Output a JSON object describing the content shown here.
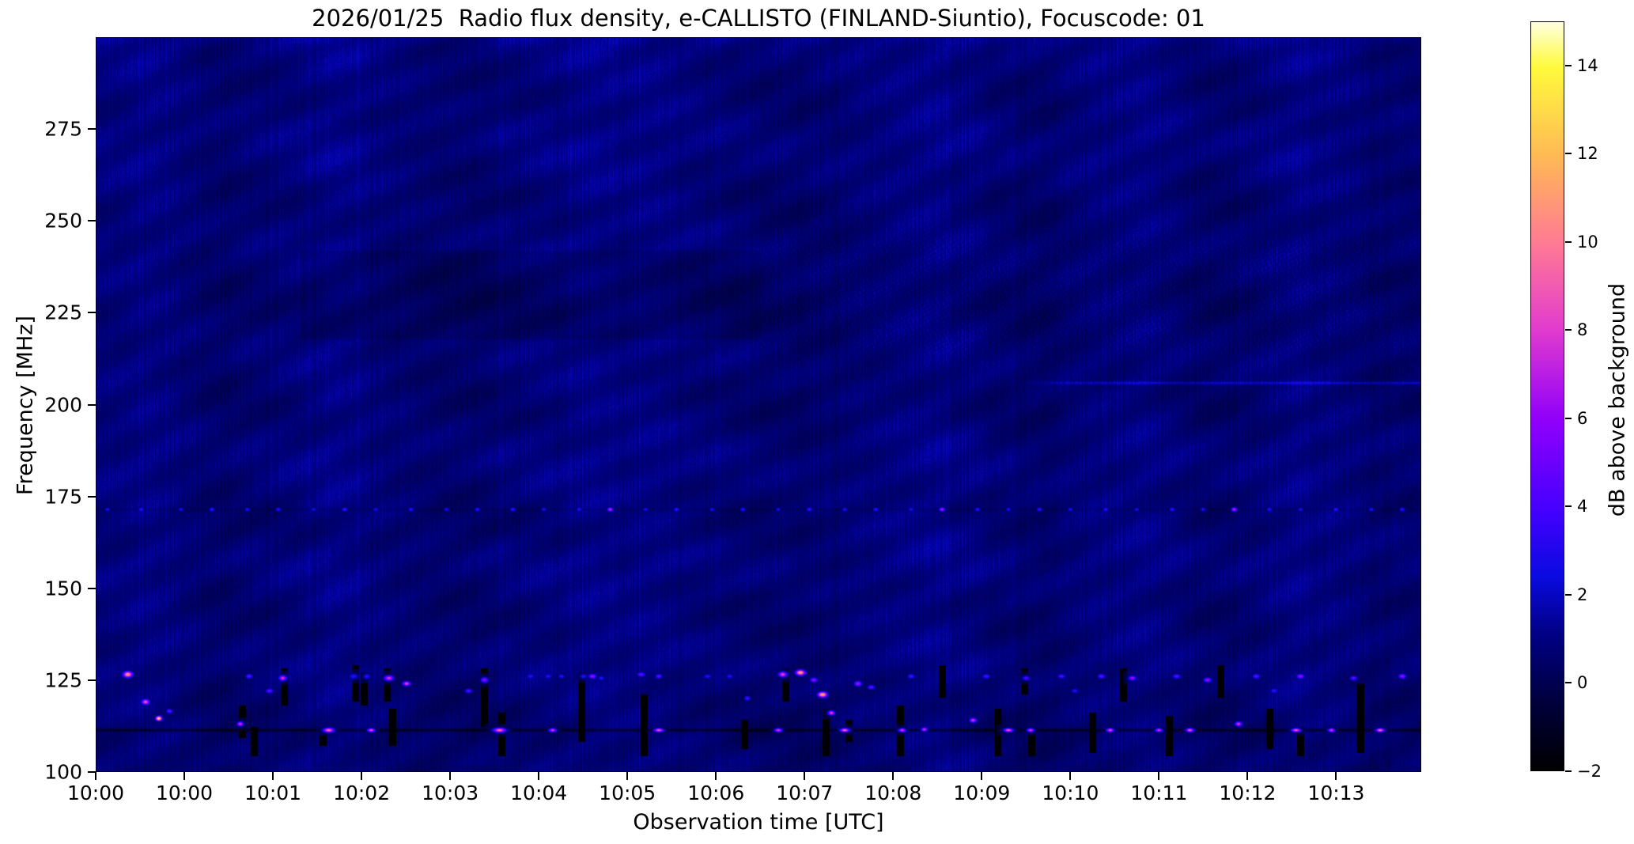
{
  "chart_data": {
    "type": "heatmap",
    "subtype": "radio-spectrogram",
    "title": "2026/01/25  Radio flux density, e-CALLISTO (FINLAND-Siuntio), Focuscode: 01",
    "xlabel": "Observation time [UTC]",
    "ylabel": "Frequency [MHz]",
    "x_range_minutes": [
      0,
      14.96
    ],
    "y_range_mhz": [
      100,
      300
    ],
    "grid": false,
    "x_ticks": [
      {
        "t": 0,
        "label": "10:00"
      },
      {
        "t": 1,
        "label": "10:00"
      },
      {
        "t": 2,
        "label": "10:01"
      },
      {
        "t": 3,
        "label": "10:02"
      },
      {
        "t": 4,
        "label": "10:03"
      },
      {
        "t": 5,
        "label": "10:04"
      },
      {
        "t": 6,
        "label": "10:05"
      },
      {
        "t": 7,
        "label": "10:06"
      },
      {
        "t": 8,
        "label": "10:07"
      },
      {
        "t": 9,
        "label": "10:08"
      },
      {
        "t": 10,
        "label": "10:09"
      },
      {
        "t": 11,
        "label": "10:10"
      },
      {
        "t": 12,
        "label": "10:11"
      },
      {
        "t": 13,
        "label": "10:12"
      },
      {
        "t": 14,
        "label": "10:13"
      }
    ],
    "y_ticks": [
      {
        "f": 275,
        "label": "275"
      },
      {
        "f": 250,
        "label": "250"
      },
      {
        "f": 225,
        "label": "225"
      },
      {
        "f": 200,
        "label": "200"
      },
      {
        "f": 175,
        "label": "175"
      },
      {
        "f": 150,
        "label": "150"
      },
      {
        "f": 125,
        "label": "125"
      },
      {
        "f": 100,
        "label": "100"
      }
    ],
    "colorbar": {
      "label": "dB above background",
      "range": [
        -2,
        15
      ],
      "ticks": [
        {
          "v": 14,
          "label": "14"
        },
        {
          "v": 12,
          "label": "12"
        },
        {
          "v": 10,
          "label": "10"
        },
        {
          "v": 8,
          "label": "8"
        },
        {
          "v": 6,
          "label": "6"
        },
        {
          "v": 4,
          "label": "4"
        },
        {
          "v": 2,
          "label": "2"
        },
        {
          "v": 0,
          "label": "0"
        },
        {
          "v": -2,
          "label": "−2"
        }
      ],
      "colormap_name": "gnuplot2-like (black-blue-violet-magenta-orange-yellow-white)",
      "stops": [
        [
          0.0,
          0,
          0,
          0
        ],
        [
          0.09,
          0,
          0,
          60
        ],
        [
          0.18,
          0,
          0,
          130
        ],
        [
          0.26,
          10,
          10,
          225
        ],
        [
          0.35,
          70,
          0,
          255
        ],
        [
          0.47,
          145,
          0,
          250
        ],
        [
          0.59,
          225,
          60,
          205
        ],
        [
          0.7,
          255,
          120,
          150
        ],
        [
          0.82,
          255,
          185,
          85
        ],
        [
          0.94,
          255,
          250,
          60
        ],
        [
          1.0,
          255,
          255,
          225
        ]
      ]
    },
    "background": {
      "mean_db": 0.8,
      "noise_db": 0.6,
      "description": "dark navy quiet background with fine vertical striations, diagonal interference waves, darker 218-242 MHz band before 10:07.5 and checkered moire texture after"
    },
    "rfi_lines": [
      {
        "f": 111.3,
        "db": -0.8,
        "t0": 0,
        "t1": 14.96,
        "note": "dark absorption line with bright bursts"
      },
      {
        "f": 171.5,
        "db": 0.2,
        "t0": 0,
        "t1": 14.96,
        "note": "dotted carrier line, periodic blue/magenta dots"
      },
      {
        "f": 206.0,
        "db": 2.2,
        "t0": 10.3,
        "t1": 14.96,
        "note": "faint bright carrier appearing near 10:10"
      }
    ],
    "line_dots_172mhz": [
      [
        0.12,
        3.2
      ],
      [
        0.5,
        3.8
      ],
      [
        0.95,
        3.0
      ],
      [
        1.3,
        4.0
      ],
      [
        1.7,
        3.2
      ],
      [
        2.05,
        3.6
      ],
      [
        2.45,
        3.0
      ],
      [
        2.8,
        4.2
      ],
      [
        3.15,
        3.2
      ],
      [
        3.55,
        3.8
      ],
      [
        3.95,
        3.0
      ],
      [
        4.3,
        3.6
      ],
      [
        4.7,
        4.0
      ],
      [
        5.05,
        3.2
      ],
      [
        5.45,
        3.6
      ],
      [
        5.8,
        7.5
      ],
      [
        6.2,
        3.2
      ],
      [
        6.55,
        4.0
      ],
      [
        6.95,
        3.2
      ],
      [
        7.3,
        3.6
      ],
      [
        7.7,
        3.0
      ],
      [
        8.05,
        4.2
      ],
      [
        8.45,
        3.4
      ],
      [
        8.8,
        3.8
      ],
      [
        9.2,
        3.2
      ],
      [
        9.55,
        7.0
      ],
      [
        9.95,
        3.6
      ],
      [
        10.3,
        3.2
      ],
      [
        10.65,
        4.0
      ],
      [
        11.0,
        3.4
      ],
      [
        11.4,
        3.8
      ],
      [
        11.75,
        3.2
      ],
      [
        12.15,
        4.0
      ],
      [
        12.5,
        3.4
      ],
      [
        12.85,
        7.5
      ],
      [
        13.25,
        3.6
      ],
      [
        13.6,
        3.2
      ],
      [
        14.0,
        4.0
      ],
      [
        14.4,
        3.4
      ],
      [
        14.75,
        3.8
      ]
    ],
    "bursts_format": "[t_min, f_MHz, peak_dB, width_px, height_px]",
    "bursts": [
      [
        0.35,
        126.5,
        11,
        12,
        8
      ],
      [
        0.55,
        119,
        9,
        10,
        7
      ],
      [
        0.7,
        114.5,
        13,
        8,
        6
      ],
      [
        0.82,
        116.5,
        5,
        8,
        6
      ],
      [
        1.62,
        113,
        8,
        8,
        6
      ],
      [
        1.72,
        126,
        5,
        9,
        6
      ],
      [
        1.95,
        122,
        5,
        10,
        6
      ],
      [
        2.1,
        125.5,
        8,
        10,
        7
      ],
      [
        2.62,
        111.3,
        9.5,
        14,
        6
      ],
      [
        2.9,
        126,
        3.5,
        12,
        7
      ],
      [
        3.05,
        126,
        3.5,
        10,
        7
      ],
      [
        3.1,
        111.3,
        8.5,
        10,
        5
      ],
      [
        3.3,
        125.5,
        8,
        12,
        7
      ],
      [
        3.5,
        124,
        8.5,
        10,
        6
      ],
      [
        4.2,
        122,
        4.5,
        10,
        6
      ],
      [
        4.38,
        125,
        6,
        10,
        7
      ],
      [
        4.55,
        111.3,
        9.5,
        16,
        6
      ],
      [
        4.9,
        126,
        3.5,
        10,
        6
      ],
      [
        5.1,
        126,
        3.5,
        10,
        6
      ],
      [
        5.25,
        126,
        3.5,
        9,
        6
      ],
      [
        5.15,
        111.3,
        8,
        10,
        5
      ],
      [
        5.5,
        126,
        3.5,
        10,
        6
      ],
      [
        5.6,
        126,
        6.5,
        10,
        6
      ],
      [
        5.7,
        125.5,
        3.5,
        9,
        6
      ],
      [
        6.15,
        126.5,
        5,
        10,
        6
      ],
      [
        6.35,
        126,
        5,
        9,
        6
      ],
      [
        6.35,
        111.3,
        9,
        12,
        5
      ],
      [
        6.9,
        126,
        3.5,
        10,
        6
      ],
      [
        7.15,
        126,
        3.5,
        9,
        6
      ],
      [
        7.35,
        120,
        4.5,
        8,
        6
      ],
      [
        7.7,
        111.3,
        8,
        10,
        5
      ],
      [
        7.75,
        126.5,
        8.5,
        11,
        7
      ],
      [
        7.95,
        127,
        11.5,
        12,
        7
      ],
      [
        8.1,
        125,
        6.5,
        9,
        6
      ],
      [
        8.2,
        121,
        12,
        12,
        7
      ],
      [
        8.3,
        116,
        8.5,
        9,
        6
      ],
      [
        8.45,
        111.3,
        9.5,
        12,
        5
      ],
      [
        8.6,
        124,
        6.5,
        10,
        7
      ],
      [
        8.75,
        123,
        5,
        10,
        6
      ],
      [
        9.1,
        111.3,
        8,
        10,
        5
      ],
      [
        9.35,
        111.5,
        8,
        8,
        5
      ],
      [
        9.2,
        126,
        4.5,
        9,
        6
      ],
      [
        9.9,
        114,
        8,
        9,
        6
      ],
      [
        10.05,
        126,
        4.5,
        10,
        6
      ],
      [
        10.3,
        111.3,
        9,
        12,
        5
      ],
      [
        10.55,
        111.3,
        8,
        9,
        5
      ],
      [
        10.5,
        125.5,
        4.5,
        10,
        6
      ],
      [
        10.9,
        126,
        4.5,
        10,
        6
      ],
      [
        11.05,
        122,
        3.5,
        9,
        6
      ],
      [
        11.35,
        126,
        5,
        10,
        6
      ],
      [
        11.45,
        111.3,
        8.5,
        10,
        5
      ],
      [
        11.7,
        125.5,
        6.5,
        10,
        6
      ],
      [
        12.0,
        111.3,
        8,
        9,
        5
      ],
      [
        12.2,
        126,
        5,
        10,
        6
      ],
      [
        12.35,
        111.3,
        9,
        10,
        5
      ],
      [
        12.55,
        125,
        6.5,
        10,
        6
      ],
      [
        12.9,
        113,
        8,
        9,
        6
      ],
      [
        13.1,
        126,
        5,
        10,
        6
      ],
      [
        13.3,
        122,
        4,
        9,
        6
      ],
      [
        13.55,
        111.3,
        9,
        12,
        5
      ],
      [
        13.6,
        126,
        6.5,
        10,
        6
      ],
      [
        13.95,
        111.3,
        8,
        9,
        5
      ],
      [
        14.2,
        125.5,
        5,
        10,
        6
      ],
      [
        14.5,
        111.3,
        9.5,
        11,
        5
      ],
      [
        14.75,
        126,
        6.5,
        10,
        6
      ]
    ],
    "dropouts_format": "[t_min, f_low_MHz, f_high_MHz] black data-gap bars",
    "dropouts": [
      [
        1.64,
        109,
        118
      ],
      [
        1.78,
        104,
        112
      ],
      [
        2.12,
        118,
        128
      ],
      [
        2.56,
        107,
        112
      ],
      [
        2.92,
        119,
        129
      ],
      [
        3.02,
        118,
        127
      ],
      [
        3.28,
        119,
        128
      ],
      [
        3.34,
        107,
        117
      ],
      [
        4.38,
        112,
        128
      ],
      [
        4.58,
        104,
        116
      ],
      [
        5.48,
        108,
        127
      ],
      [
        6.18,
        104,
        121
      ],
      [
        7.32,
        106,
        114
      ],
      [
        7.78,
        119,
        128
      ],
      [
        8.24,
        104,
        117
      ],
      [
        8.5,
        108,
        114
      ],
      [
        9.08,
        104,
        118
      ],
      [
        9.55,
        120,
        129
      ],
      [
        10.18,
        104,
        117
      ],
      [
        10.48,
        121,
        128
      ],
      [
        10.56,
        104,
        111
      ],
      [
        11.25,
        105,
        116
      ],
      [
        11.6,
        119,
        128
      ],
      [
        12.12,
        104,
        115
      ],
      [
        12.7,
        120,
        129
      ],
      [
        13.25,
        106,
        117
      ],
      [
        13.6,
        104,
        112
      ],
      [
        14.28,
        105,
        124
      ]
    ],
    "vertical_streaks_minutes": [
      2.95,
      5.35,
      10.35
    ],
    "texture_regions": [
      {
        "f0": 218,
        "f1": 242,
        "t0": 2.3,
        "t1": 7.5,
        "effect": "darker band"
      },
      {
        "f0": 195,
        "f1": 255,
        "t0": 7.5,
        "t1": 14.96,
        "effect": "checkered moire"
      },
      {
        "f0": 160,
        "f1": 170,
        "t0": 0,
        "t1": 7.5,
        "effect": "slightly darker"
      }
    ]
  }
}
